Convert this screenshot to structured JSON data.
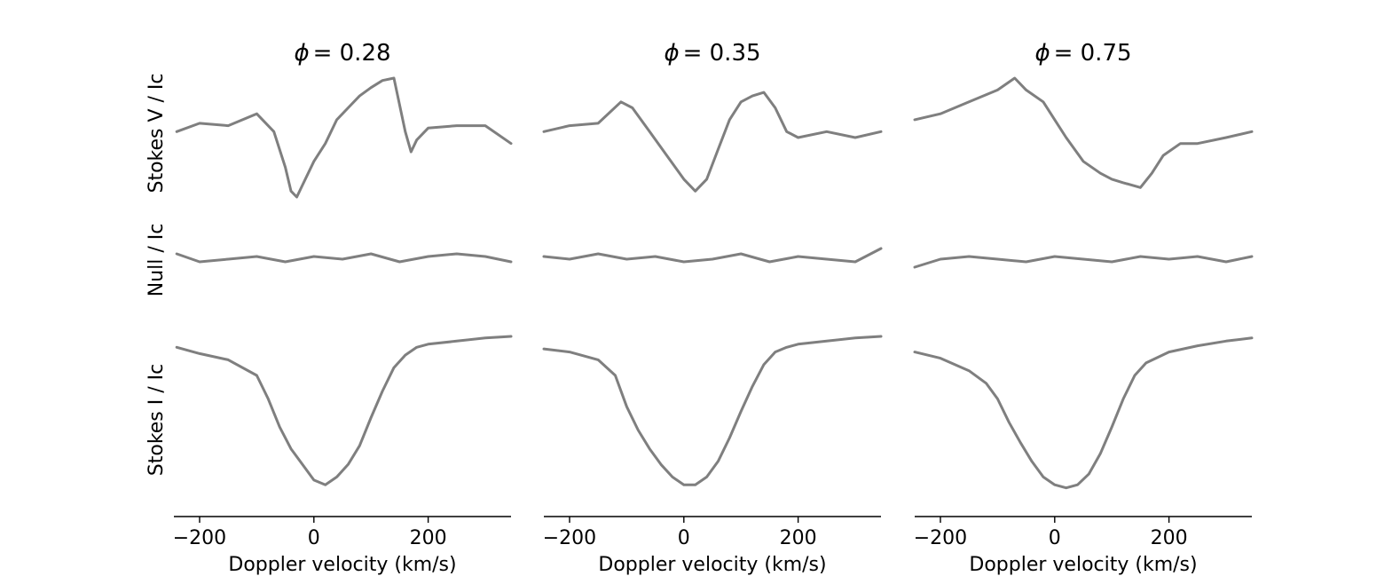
{
  "chart_data": {
    "type": "line",
    "line_color": "#7f7f7f",
    "axis_color": "#000000",
    "xlabel": "Doppler velocity (km/s)",
    "xlim": [
      -245,
      345
    ],
    "xticks": [
      {
        "value": -200,
        "label": "−200"
      },
      {
        "value": 0,
        "label": "0"
      },
      {
        "value": 200,
        "label": "200"
      }
    ],
    "row_labels": [
      "Stokes V / Ic",
      "Null / Ic",
      "Stokes I / Ic"
    ],
    "grid": false,
    "legend": "none",
    "panels": [
      {
        "phase_symbol": "ϕ",
        "phase_value": "= 0.28",
        "rows": [
          {
            "name": "Stokes V / Ic",
            "x": [
              -240,
              -200,
              -150,
              -100,
              -70,
              -50,
              -40,
              -30,
              -20,
              0,
              20,
              40,
              60,
              80,
              100,
              120,
              140,
              160,
              170,
              180,
              200,
              250,
              300,
              345
            ],
            "y": [
              0.55,
              0.62,
              0.6,
              0.7,
              0.55,
              0.25,
              0.05,
              0.0,
              0.1,
              0.3,
              0.45,
              0.65,
              0.75,
              0.85,
              0.92,
              0.98,
              1.0,
              0.55,
              0.38,
              0.48,
              0.58,
              0.6,
              0.6,
              0.45
            ]
          },
          {
            "name": "Null / Ic",
            "x": [
              -240,
              -200,
              -150,
              -100,
              -50,
              0,
              50,
              100,
              150,
              200,
              250,
              300,
              345
            ],
            "y": [
              0.6,
              0.45,
              0.5,
              0.55,
              0.45,
              0.55,
              0.5,
              0.6,
              0.45,
              0.55,
              0.6,
              0.55,
              0.45
            ]
          },
          {
            "name": "Stokes I / Ic",
            "x": [
              -240,
              -200,
              -150,
              -100,
              -80,
              -60,
              -40,
              -20,
              0,
              20,
              40,
              60,
              80,
              100,
              120,
              140,
              160,
              180,
              200,
              250,
              300,
              345
            ],
            "y": [
              0.93,
              0.89,
              0.85,
              0.75,
              0.6,
              0.42,
              0.28,
              0.18,
              0.08,
              0.05,
              0.1,
              0.18,
              0.3,
              0.48,
              0.65,
              0.8,
              0.88,
              0.93,
              0.95,
              0.97,
              0.99,
              1.0
            ]
          }
        ]
      },
      {
        "phase_symbol": "ϕ",
        "phase_value": "= 0.35",
        "rows": [
          {
            "name": "Stokes V / Ic",
            "x": [
              -245,
              -200,
              -150,
              -110,
              -90,
              -60,
              -30,
              0,
              20,
              40,
              60,
              80,
              100,
              120,
              140,
              160,
              180,
              200,
              250,
              300,
              345
            ],
            "y": [
              0.55,
              0.6,
              0.62,
              0.8,
              0.75,
              0.55,
              0.35,
              0.15,
              0.05,
              0.15,
              0.4,
              0.65,
              0.8,
              0.85,
              0.88,
              0.75,
              0.55,
              0.5,
              0.55,
              0.5,
              0.55
            ]
          },
          {
            "name": "Null / Ic",
            "x": [
              -245,
              -200,
              -150,
              -100,
              -50,
              0,
              50,
              100,
              150,
              200,
              250,
              300,
              345
            ],
            "y": [
              0.55,
              0.5,
              0.6,
              0.5,
              0.55,
              0.45,
              0.5,
              0.6,
              0.45,
              0.55,
              0.5,
              0.45,
              0.7
            ]
          },
          {
            "name": "Stokes I / Ic",
            "x": [
              -245,
              -200,
              -150,
              -120,
              -100,
              -80,
              -60,
              -40,
              -20,
              0,
              20,
              40,
              60,
              80,
              100,
              120,
              140,
              160,
              180,
              200,
              250,
              300,
              345
            ],
            "y": [
              0.92,
              0.9,
              0.85,
              0.75,
              0.55,
              0.4,
              0.28,
              0.18,
              0.1,
              0.05,
              0.05,
              0.1,
              0.2,
              0.35,
              0.52,
              0.68,
              0.82,
              0.9,
              0.93,
              0.95,
              0.97,
              0.99,
              1.0
            ]
          }
        ]
      },
      {
        "phase_symbol": "ϕ",
        "phase_value": "= 0.75",
        "rows": [
          {
            "name": "Stokes V / Ic",
            "x": [
              -245,
              -200,
              -150,
              -100,
              -70,
              -50,
              -20,
              0,
              20,
              50,
              80,
              100,
              120,
              150,
              170,
              190,
              220,
              250,
              300,
              345
            ],
            "y": [
              0.65,
              0.7,
              0.8,
              0.9,
              1.0,
              0.9,
              0.8,
              0.65,
              0.5,
              0.3,
              0.2,
              0.15,
              0.12,
              0.08,
              0.2,
              0.35,
              0.45,
              0.45,
              0.5,
              0.55
            ]
          },
          {
            "name": "Null / Ic",
            "x": [
              -245,
              -200,
              -150,
              -100,
              -50,
              0,
              50,
              100,
              150,
              200,
              250,
              300,
              345
            ],
            "y": [
              0.35,
              0.5,
              0.55,
              0.5,
              0.45,
              0.55,
              0.5,
              0.45,
              0.55,
              0.5,
              0.55,
              0.45,
              0.55
            ]
          },
          {
            "name": "Stokes I / Ic",
            "x": [
              -245,
              -200,
              -150,
              -120,
              -100,
              -80,
              -60,
              -40,
              -20,
              0,
              20,
              40,
              60,
              80,
              100,
              120,
              140,
              160,
              200,
              250,
              300,
              345
            ],
            "y": [
              0.9,
              0.86,
              0.78,
              0.7,
              0.6,
              0.45,
              0.32,
              0.2,
              0.1,
              0.05,
              0.03,
              0.05,
              0.12,
              0.25,
              0.42,
              0.6,
              0.75,
              0.83,
              0.9,
              0.94,
              0.97,
              0.99
            ]
          }
        ]
      }
    ]
  }
}
